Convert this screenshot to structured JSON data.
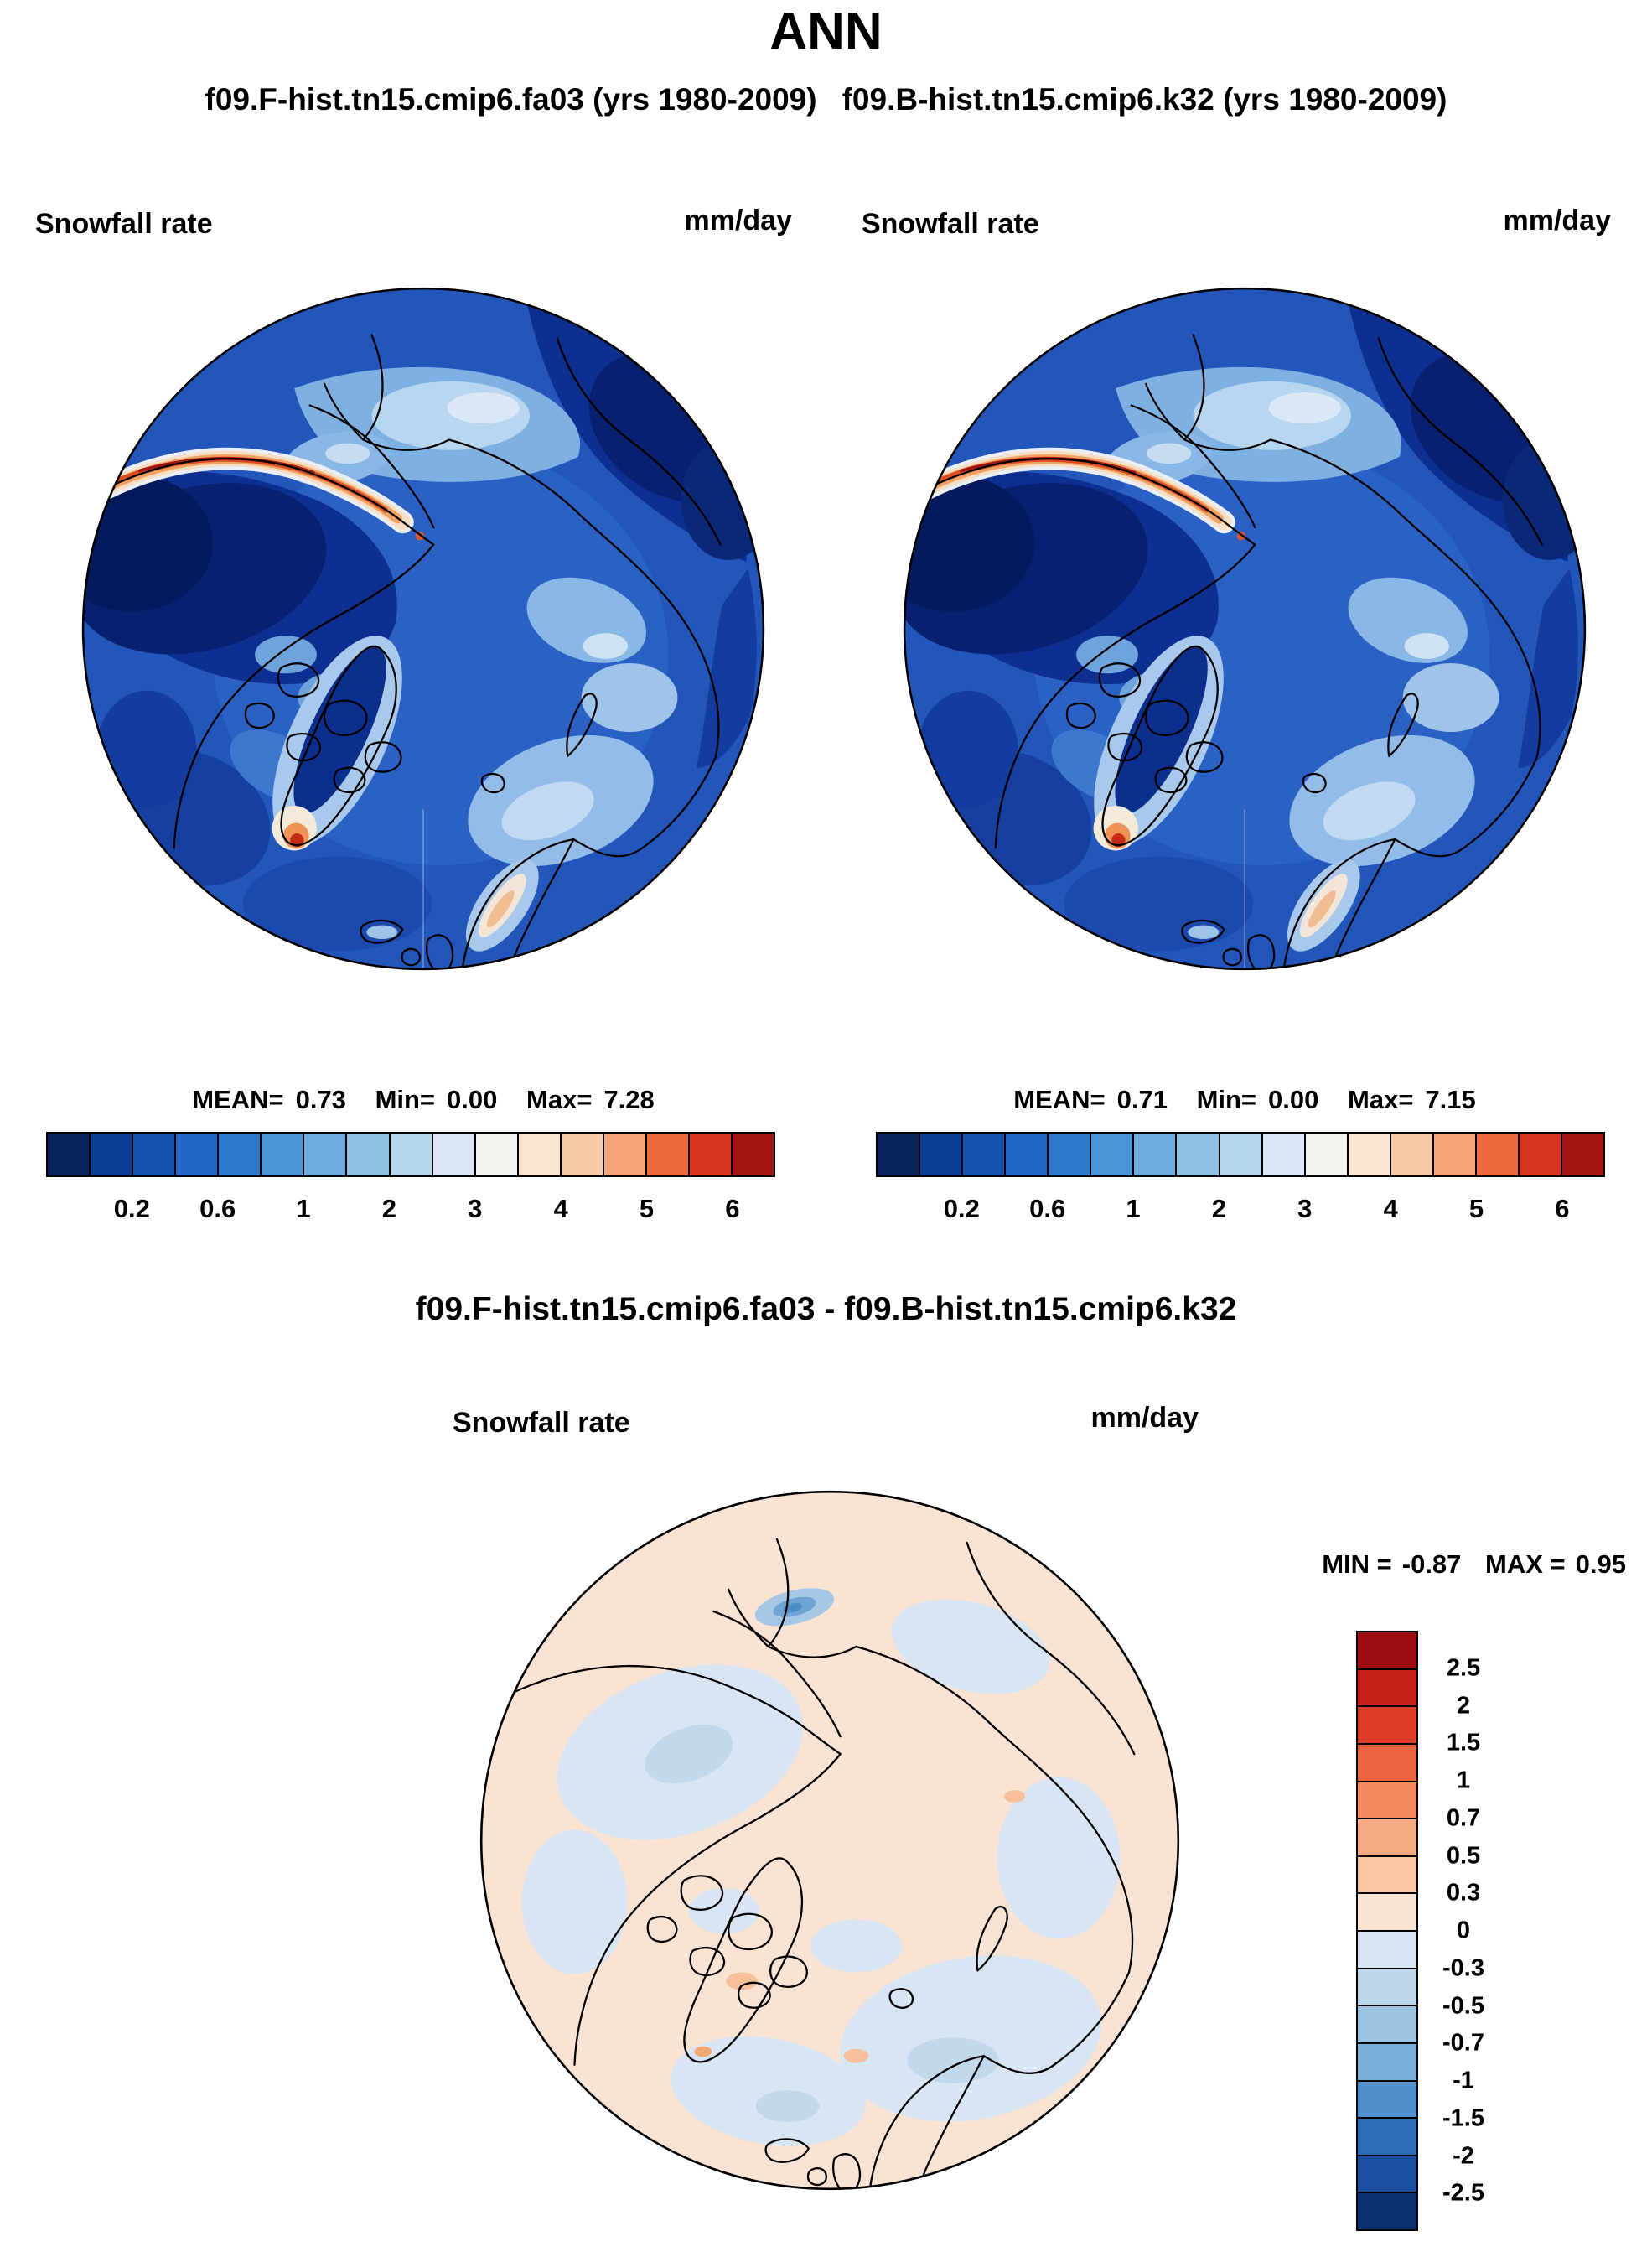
{
  "title": "ANN",
  "header": {
    "left_run": "f09.F-hist.tn15.cmip6.fa03 (yrs 1980-2009)",
    "right_run": "f09.B-hist.tn15.cmip6.k32 (yrs 1980-2009)"
  },
  "panels": {
    "left": {
      "variable": "Snowfall rate",
      "units": "mm/day",
      "stats": {
        "mean_label": "MEAN=",
        "mean": "0.73",
        "min_label": "Min=",
        "min": "0.00",
        "max_label": "Max=",
        "max": "7.28"
      }
    },
    "right": {
      "variable": "Snowfall rate",
      "units": "mm/day",
      "stats": {
        "mean_label": "MEAN=",
        "mean": "0.71",
        "min_label": "Min=",
        "min": "0.00",
        "max_label": "Max=",
        "max": "7.15"
      }
    },
    "diff": {
      "title": "f09.F-hist.tn15.cmip6.fa03 - f09.B-hist.tn15.cmip6.k32",
      "variable": "Snowfall rate",
      "units": "mm/day",
      "min_label": "MIN =",
      "min": "-0.87",
      "max_label": "MAX =",
      "max": "0.95"
    }
  },
  "colorbar_top": {
    "colors": [
      "#07245f",
      "#0b3d94",
      "#1553b0",
      "#2166c4",
      "#2f79cd",
      "#4b94d8",
      "#6facde",
      "#8fc1e4",
      "#b5d7ec",
      "#d9e8f4",
      "#f2f2ee",
      "#fbe4d0",
      "#f9c9a8",
      "#f5a579",
      "#ec6a3c",
      "#d43420",
      "#a31312"
    ],
    "tick_labels": [
      "0.2",
      "0.6",
      "1",
      "2",
      "3",
      "4",
      "5",
      "6"
    ],
    "tick_positions": [
      2,
      4,
      6,
      8,
      10,
      12,
      14,
      16
    ]
  },
  "colorbar_diff": {
    "colors": [
      "#9e0d13",
      "#c42016",
      "#dc3d24",
      "#ea6440",
      "#f28a5e",
      "#f7ab82",
      "#fac7a6",
      "#fbe3d2",
      "#d7e6f2",
      "#bcd7ea",
      "#9cc3e0",
      "#79aed8",
      "#508fcc",
      "#2f6db8",
      "#1c4f9f",
      "#0a306e"
    ],
    "labels": [
      "2.5",
      "2",
      "1.5",
      "1",
      "0.7",
      "0.5",
      "0.3",
      "0",
      "-0.3",
      "-0.5",
      "-0.7",
      "-1",
      "-1.5",
      "-2",
      "-2.5"
    ]
  },
  "chart_data": [
    {
      "type": "heatmap",
      "subtype": "polar-stereographic-map",
      "season": "ANN",
      "title": "f09.F-hist.tn15.cmip6.fa03 (yrs 1980-2009)",
      "variable": "Snowfall rate",
      "units": "mm/day",
      "stats": {
        "mean": 0.73,
        "min": 0.0,
        "max": 7.28
      },
      "contour_levels": [
        0.1,
        0.2,
        0.4,
        0.6,
        0.8,
        1,
        1.5,
        2,
        2.5,
        3,
        3.5,
        4,
        4.5,
        5,
        5.5,
        6
      ],
      "legend_position": "bottom",
      "notable_features": [
        "high snowfall band (red, >5 mm/day) along Gulf of Alaska coast",
        "high snowfall spot at southern Greenland tip",
        "low snowfall (dark blue, <0.2) over North Pacific and Sea of Okhotsk",
        "moderate snowfall (0.4-1) over central Arctic Ocean",
        "light snowfall maxima near coastal Norway"
      ]
    },
    {
      "type": "heatmap",
      "subtype": "polar-stereographic-map",
      "season": "ANN",
      "title": "f09.B-hist.tn15.cmip6.k32 (yrs 1980-2009)",
      "variable": "Snowfall rate",
      "units": "mm/day",
      "stats": {
        "mean": 0.71,
        "min": 0.0,
        "max": 7.15
      },
      "contour_levels": [
        0.1,
        0.2,
        0.4,
        0.6,
        0.8,
        1,
        1.5,
        2,
        2.5,
        3,
        3.5,
        4,
        4.5,
        5,
        5.5,
        6
      ],
      "legend_position": "bottom",
      "notable_features": [
        "pattern nearly identical to left panel"
      ]
    },
    {
      "type": "heatmap",
      "subtype": "polar-stereographic-map",
      "title": "f09.F-hist.tn15.cmip6.fa03 - f09.B-hist.tn15.cmip6.k32",
      "variable": "Snowfall rate",
      "units": "mm/day",
      "stats": {
        "min": -0.87,
        "max": 0.95
      },
      "contour_levels": [
        -2.5,
        -2,
        -1.5,
        -1,
        -0.7,
        -0.5,
        -0.3,
        0,
        0.3,
        0.5,
        0.7,
        1,
        1.5,
        2,
        2.5
      ],
      "legend_position": "right",
      "notable_features": [
        "differences mostly within ±0.3 mm/day",
        "weak positive (pale orange) over most of domain",
        "weak negative (pale blue) patches over mid-ocean regions",
        "localized negative anomaly (to about -0.9) along Gulf of Alaska coast"
      ]
    }
  ]
}
